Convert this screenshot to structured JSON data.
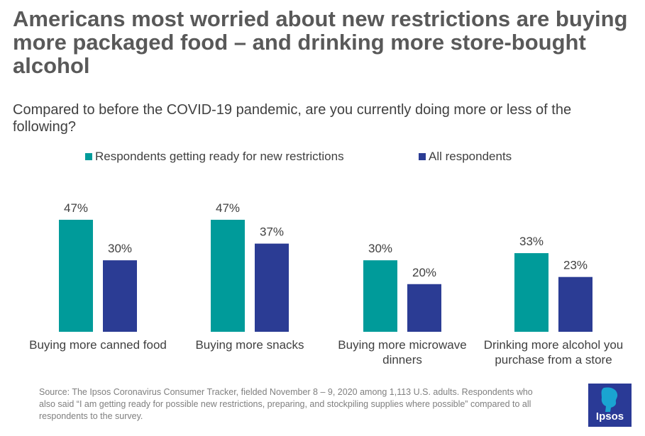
{
  "title": "Americans most worried about new restrictions are buying more packaged food – and drinking more store-bought alcohol",
  "subtitle": "Compared to before the COVID-19 pandemic, are you currently doing more or less of the following?",
  "source": "Source: The Ipsos Coronavirus Consumer Tracker, fielded November 8 – 9, 2020 among 1,113 U.S. adults. Respondents who also said “I am getting ready for possible new restrictions, preparing, and stockpiling supplies where possible” compared to all respondents to the survey.",
  "logo": {
    "text": "Ipsos",
    "color": "#2a3a96"
  },
  "chart_data": {
    "type": "bar",
    "categories": [
      [
        "Buying more canned food"
      ],
      [
        "Buying more snacks"
      ],
      [
        "Buying more microwave",
        "dinners"
      ],
      [
        "Drinking more alcohol you",
        "purchase from a store"
      ]
    ],
    "series": [
      {
        "name": "Respondents getting ready for new restrictions",
        "color": "#009b9a",
        "values": [
          47,
          47,
          30,
          33
        ],
        "labels": [
          "47%",
          "47%",
          "30%",
          "33%"
        ]
      },
      {
        "name": "All respondents",
        "color": "#2b3c94",
        "values": [
          30,
          37,
          20,
          23
        ],
        "labels": [
          "30%",
          "37%",
          "20%",
          "23%"
        ]
      }
    ],
    "title": "",
    "xlabel": "",
    "ylabel": "",
    "ylim": [
      0,
      47
    ],
    "grid": false,
    "legend": "top"
  }
}
